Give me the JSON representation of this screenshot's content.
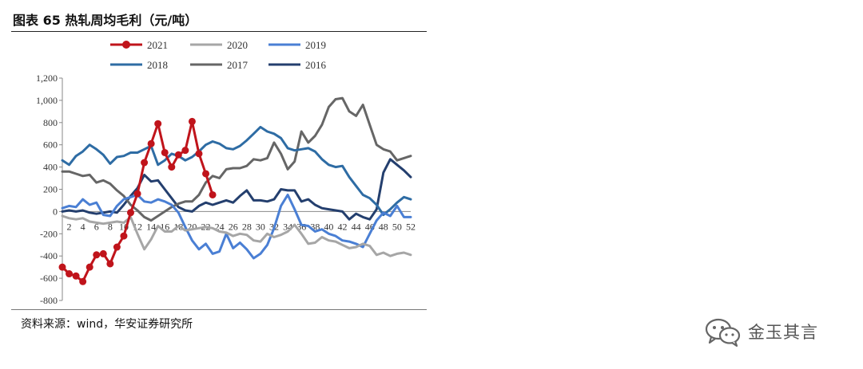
{
  "header": {
    "title": "图表 65  热轧周均毛利（元/吨）"
  },
  "source": {
    "text": "资料来源：wind，华安证券研究所"
  },
  "watermark": {
    "text": "金玉其言",
    "icon": "wechat-icon"
  },
  "chart_data": {
    "type": "line",
    "title": "图表 65  热轧周均毛利（元/吨）",
    "xlabel": "",
    "ylabel": "",
    "ylim": [
      -800,
      1200
    ],
    "y_ticks": [
      -800,
      -600,
      -400,
      -200,
      0,
      200,
      400,
      600,
      800,
      1000,
      1200
    ],
    "y_tick_labels": [
      "-800",
      "-600",
      "-400",
      "-200",
      "0",
      "200",
      "400",
      "600",
      "800",
      "1,000",
      "1,200"
    ],
    "xlim": [
      1,
      52
    ],
    "x_ticks": [
      2,
      4,
      6,
      8,
      10,
      12,
      14,
      16,
      18,
      20,
      22,
      24,
      26,
      28,
      30,
      32,
      34,
      36,
      38,
      40,
      42,
      44,
      46,
      48,
      50,
      52
    ],
    "x_tick_labels": [
      "2",
      "4",
      "6",
      "8",
      "10",
      "12",
      "14",
      "16",
      "18",
      "20",
      "22",
      "24",
      "26",
      "28",
      "30",
      "32",
      "34",
      "36",
      "38",
      "40",
      "42",
      "44",
      "46",
      "48",
      "50",
      "52"
    ],
    "grid": false,
    "legend_position": "top",
    "series": [
      {
        "name": "2021",
        "color": "#c0141b",
        "markers": true,
        "x": [
          1,
          2,
          3,
          4,
          5,
          6,
          7,
          8,
          9,
          10,
          11,
          12,
          13,
          14,
          15,
          16,
          17,
          18,
          19,
          20,
          21,
          22,
          23
        ],
        "values": [
          -500,
          -560,
          -580,
          -630,
          -500,
          -390,
          -380,
          -470,
          -320,
          -220,
          -10,
          160,
          440,
          610,
          790,
          530,
          400,
          510,
          550,
          810,
          520,
          340,
          150
        ]
      },
      {
        "name": "2020",
        "color": "#a6a6a6",
        "markers": false,
        "x": [
          1,
          2,
          3,
          4,
          5,
          6,
          7,
          8,
          9,
          10,
          11,
          12,
          13,
          14,
          15,
          16,
          17,
          18,
          19,
          20,
          21,
          22,
          23,
          24,
          25,
          26,
          27,
          28,
          29,
          30,
          31,
          32,
          33,
          34,
          35,
          36,
          37,
          38,
          39,
          40,
          41,
          42,
          43,
          44,
          45,
          46,
          47,
          48,
          49,
          50,
          51,
          52
        ],
        "values": [
          -40,
          -60,
          -70,
          -60,
          -90,
          -100,
          -110,
          -100,
          -90,
          -100,
          -50,
          -200,
          -340,
          -250,
          -130,
          -180,
          -180,
          -130,
          -170,
          -160,
          -150,
          -140,
          -150,
          -180,
          -190,
          -220,
          -200,
          -210,
          -260,
          -270,
          -200,
          -230,
          -210,
          -180,
          -120,
          -200,
          -290,
          -280,
          -230,
          -260,
          -270,
          -300,
          -330,
          -320,
          -290,
          -310,
          -390,
          -370,
          -400,
          -380,
          -370,
          -390
        ]
      },
      {
        "name": "2019",
        "color": "#4a7fd4",
        "markers": false,
        "x": [
          1,
          2,
          3,
          4,
          5,
          6,
          7,
          8,
          9,
          10,
          11,
          12,
          13,
          14,
          15,
          16,
          17,
          18,
          19,
          20,
          21,
          22,
          23,
          24,
          25,
          26,
          27,
          28,
          29,
          30,
          31,
          32,
          33,
          34,
          35,
          36,
          37,
          38,
          39,
          40,
          41,
          42,
          43,
          44,
          45,
          46,
          47,
          48,
          49,
          50,
          51,
          52
        ],
        "values": [
          30,
          50,
          40,
          110,
          60,
          80,
          -30,
          -40,
          50,
          110,
          130,
          150,
          90,
          80,
          110,
          90,
          60,
          -10,
          -140,
          -260,
          -340,
          -290,
          -380,
          -360,
          -200,
          -330,
          -280,
          -340,
          -420,
          -380,
          -300,
          -150,
          50,
          150,
          20,
          -120,
          -130,
          -180,
          -160,
          -200,
          -220,
          -260,
          -270,
          -290,
          -320,
          -200,
          -80,
          -10,
          -40,
          50,
          -50,
          -50
        ]
      },
      {
        "name": "2018",
        "color": "#2e6ca4",
        "markers": false,
        "x": [
          1,
          2,
          3,
          4,
          5,
          6,
          7,
          8,
          9,
          10,
          11,
          12,
          13,
          14,
          15,
          16,
          17,
          18,
          19,
          20,
          21,
          22,
          23,
          24,
          25,
          26,
          27,
          28,
          29,
          30,
          31,
          32,
          33,
          34,
          35,
          36,
          37,
          38,
          39,
          40,
          41,
          42,
          43,
          44,
          45,
          46,
          47,
          48,
          49,
          50,
          51,
          52
        ],
        "values": [
          460,
          420,
          500,
          540,
          600,
          560,
          510,
          430,
          490,
          500,
          530,
          530,
          560,
          590,
          420,
          460,
          520,
          500,
          460,
          490,
          540,
          600,
          630,
          610,
          570,
          560,
          590,
          640,
          700,
          760,
          720,
          700,
          660,
          570,
          550,
          560,
          570,
          540,
          470,
          420,
          400,
          410,
          310,
          230,
          150,
          120,
          60,
          -30,
          20,
          80,
          130,
          110
        ]
      },
      {
        "name": "2017",
        "color": "#666666",
        "markers": false,
        "x": [
          1,
          2,
          3,
          4,
          5,
          6,
          7,
          8,
          9,
          10,
          11,
          12,
          13,
          14,
          15,
          16,
          17,
          18,
          19,
          20,
          21,
          22,
          23,
          24,
          25,
          26,
          27,
          28,
          29,
          30,
          31,
          32,
          33,
          34,
          35,
          36,
          37,
          38,
          39,
          40,
          41,
          42,
          43,
          44,
          45,
          46,
          47,
          48,
          49,
          50,
          51,
          52
        ],
        "values": [
          360,
          360,
          340,
          320,
          330,
          260,
          280,
          250,
          190,
          140,
          60,
          10,
          -50,
          -80,
          -40,
          0,
          40,
          70,
          90,
          90,
          150,
          260,
          320,
          300,
          380,
          390,
          390,
          410,
          470,
          460,
          480,
          620,
          520,
          380,
          450,
          720,
          620,
          680,
          780,
          940,
          1010,
          1020,
          900,
          860,
          960,
          780,
          600,
          560,
          540,
          460,
          480,
          500
        ]
      },
      {
        "name": "2016",
        "color": "#243f6e",
        "markers": false,
        "x": [
          1,
          2,
          3,
          4,
          5,
          6,
          7,
          8,
          9,
          10,
          11,
          12,
          13,
          14,
          15,
          16,
          17,
          18,
          19,
          20,
          21,
          22,
          23,
          24,
          25,
          26,
          27,
          28,
          29,
          30,
          31,
          32,
          33,
          34,
          35,
          36,
          37,
          38,
          39,
          40,
          41,
          42,
          43,
          44,
          45,
          46,
          47,
          48,
          49,
          50,
          51,
          52
        ],
        "values": [
          0,
          10,
          0,
          10,
          -10,
          -20,
          -10,
          0,
          -10,
          60,
          140,
          210,
          330,
          270,
          280,
          200,
          120,
          40,
          10,
          0,
          50,
          80,
          60,
          80,
          100,
          80,
          140,
          190,
          100,
          100,
          90,
          110,
          200,
          190,
          190,
          90,
          110,
          60,
          30,
          20,
          10,
          0,
          -70,
          -20,
          -50,
          -70,
          20,
          350,
          470,
          420,
          370,
          310
        ]
      }
    ]
  }
}
